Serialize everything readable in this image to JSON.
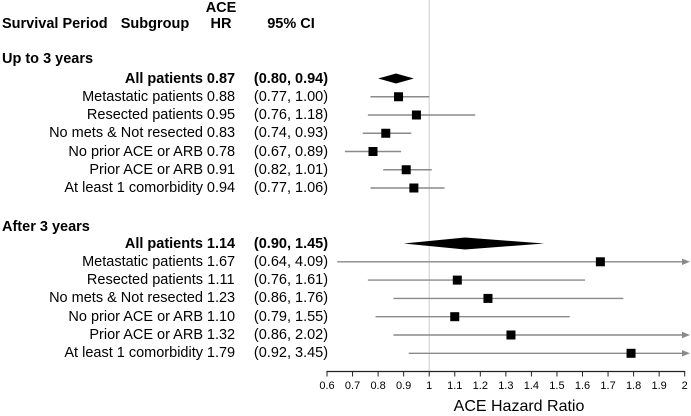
{
  "chart_data": {
    "type": "forest",
    "title": "",
    "xlabel": "ACE Hazard Ratio",
    "xlim": [
      0.6,
      2
    ],
    "x_ticks": [
      "0.6",
      "0.7",
      "0.8",
      "0.9",
      "1",
      "1.1",
      "1.2",
      "1.3",
      "1.4",
      "1.5",
      "1.6",
      "1.7",
      "1.8",
      "1.9",
      "2"
    ],
    "reference_line": 1,
    "legend_position": "none",
    "grid": false,
    "colors": {
      "marker": "#000000",
      "ci_line": "#8a8a8a",
      "reference_line": "#d9d9d9",
      "axis": "#222222",
      "text": "#000000"
    },
    "columns": {
      "survival_period": "Survival Period",
      "subgroup": "Subgroup",
      "effect_top": "ACE",
      "effect_bottom": "HR",
      "ci": "95% CI"
    },
    "groups": [
      {
        "label": "Up to 3 years",
        "rows": [
          {
            "subgroup": "All patients",
            "hr": 0.87,
            "lo": 0.8,
            "hi": 0.94,
            "hr_text": "0.87",
            "ci_text": "(0.80, 0.94)",
            "summary": true
          },
          {
            "subgroup": "Metastatic patients",
            "hr": 0.88,
            "lo": 0.77,
            "hi": 1.0,
            "hr_text": "0.88",
            "ci_text": "(0.77, 1.00)",
            "summary": false
          },
          {
            "subgroup": "Resected patients",
            "hr": 0.95,
            "lo": 0.76,
            "hi": 1.18,
            "hr_text": "0.95",
            "ci_text": "(0.76, 1.18)",
            "summary": false
          },
          {
            "subgroup": "No mets & Not resected",
            "hr": 0.83,
            "lo": 0.74,
            "hi": 0.93,
            "hr_text": "0.83",
            "ci_text": "(0.74, 0.93)",
            "summary": false
          },
          {
            "subgroup": "No prior ACE or ARB",
            "hr": 0.78,
            "lo": 0.67,
            "hi": 0.89,
            "hr_text": "0.78",
            "ci_text": "(0.67, 0.89)",
            "summary": false
          },
          {
            "subgroup": "Prior ACE or ARB",
            "hr": 0.91,
            "lo": 0.82,
            "hi": 1.01,
            "hr_text": "0.91",
            "ci_text": "(0.82, 1.01)",
            "summary": false
          },
          {
            "subgroup": "At least 1 comorbidity",
            "hr": 0.94,
            "lo": 0.77,
            "hi": 1.06,
            "hr_text": "0.94",
            "ci_text": "(0.77, 1.06)",
            "summary": false
          }
        ]
      },
      {
        "label": "After 3 years",
        "rows": [
          {
            "subgroup": "All patients",
            "hr": 1.14,
            "lo": 0.9,
            "hi": 1.45,
            "hr_text": "1.14",
            "ci_text": "(0.90, 1.45)",
            "summary": true
          },
          {
            "subgroup": "Metastatic patients",
            "hr": 1.67,
            "lo": 0.64,
            "hi": 4.09,
            "hr_text": "1.67",
            "ci_text": "(0.64, 4.09)",
            "summary": false
          },
          {
            "subgroup": "Resected patients",
            "hr": 1.11,
            "lo": 0.76,
            "hi": 1.61,
            "hr_text": "1.11",
            "ci_text": "(0.76, 1.61)",
            "summary": false
          },
          {
            "subgroup": "No mets & Not resected",
            "hr": 1.23,
            "lo": 0.86,
            "hi": 1.76,
            "hr_text": "1.23",
            "ci_text": "(0.86, 1.76)",
            "summary": false
          },
          {
            "subgroup": "No prior ACE or ARB",
            "hr": 1.1,
            "lo": 0.79,
            "hi": 1.55,
            "hr_text": "1.10",
            "ci_text": "(0.79, 1.55)",
            "summary": false
          },
          {
            "subgroup": "Prior ACE or ARB",
            "hr": 1.32,
            "lo": 0.86,
            "hi": 2.02,
            "hr_text": "1.32",
            "ci_text": "(0.86, 2.02)",
            "summary": false
          },
          {
            "subgroup": "At least 1 comorbidity",
            "hr": 1.79,
            "lo": 0.92,
            "hi": 3.45,
            "hr_text": "1.79",
            "ci_text": "(0.92, 3.45)",
            "summary": false
          }
        ]
      }
    ]
  }
}
